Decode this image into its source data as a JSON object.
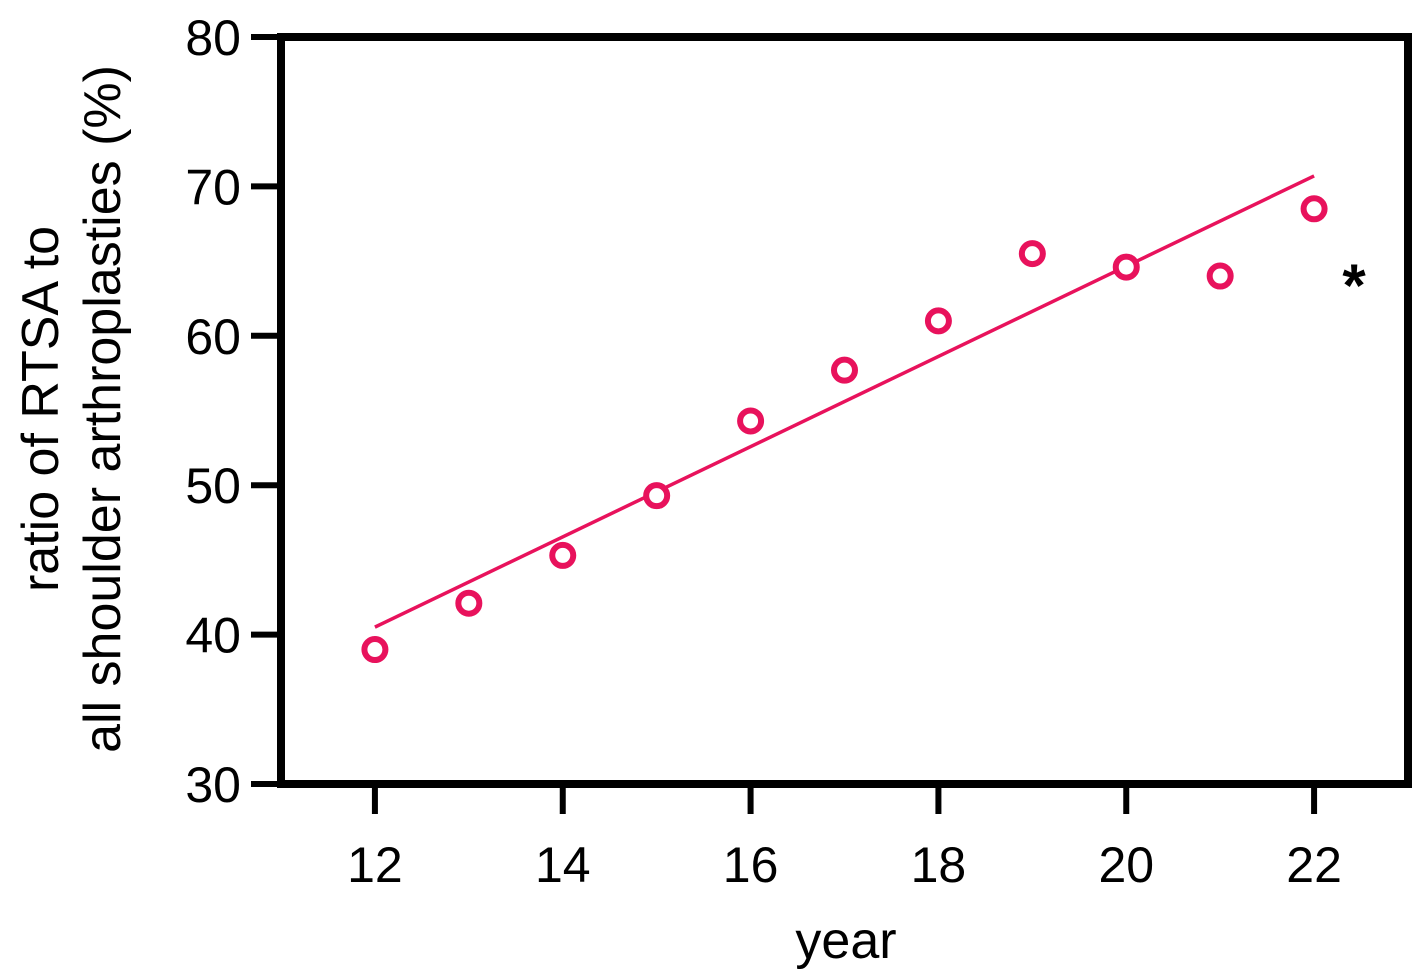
{
  "chart_data": {
    "type": "scatter",
    "x": [
      12,
      13,
      14,
      15,
      16,
      17,
      18,
      19,
      20,
      21,
      22
    ],
    "y": [
      39.0,
      42.1,
      45.3,
      49.3,
      54.3,
      57.7,
      61.0,
      65.5,
      64.6,
      64.0,
      68.5
    ],
    "trendline": {
      "x": [
        12,
        22
      ],
      "y": [
        40.5,
        70.7
      ]
    },
    "xlabel": "year",
    "ylabel_lines": [
      "ratio of RTSA to",
      "all shoulder arthroplasties (%)"
    ],
    "xlim": [
      11,
      23
    ],
    "ylim": [
      30,
      80
    ],
    "xticks": [
      "12",
      "14",
      "16",
      "18",
      "20",
      "22"
    ],
    "yticks": [
      "30",
      "40",
      "50",
      "60",
      "70",
      "80"
    ],
    "annotation": "*",
    "grid": false,
    "colors": {
      "series": "#e8125c",
      "axis": "#000000"
    }
  }
}
